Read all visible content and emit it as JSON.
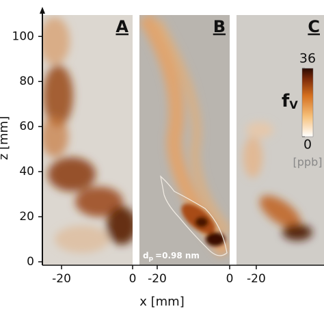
{
  "chart_data": {
    "type": "heatmap",
    "xlabel": "x [mm]",
    "ylabel": "z [mm]",
    "ylim": [
      0,
      111
    ],
    "yticks": [
      0,
      20,
      40,
      60,
      80,
      100
    ],
    "panels": [
      {
        "label": "A",
        "xlim": [
          -25.4,
          0
        ],
        "xticks": [
          -20,
          0
        ]
      },
      {
        "label": "B",
        "xlim": [
          -24.9,
          0
        ],
        "xticks": [
          -20,
          0
        ],
        "annotation": {
          "symbol": "d",
          "sub": "p",
          "text": "=0.98 nm"
        }
      },
      {
        "label": "C",
        "xlim": [
          -25.5,
          0
        ],
        "xticks": [
          -20
        ]
      }
    ],
    "colorbar": {
      "symbol": "f",
      "sub": "V",
      "lim": [
        0,
        36
      ],
      "ticks": [
        0,
        36
      ],
      "unit": "[ppb]"
    }
  }
}
